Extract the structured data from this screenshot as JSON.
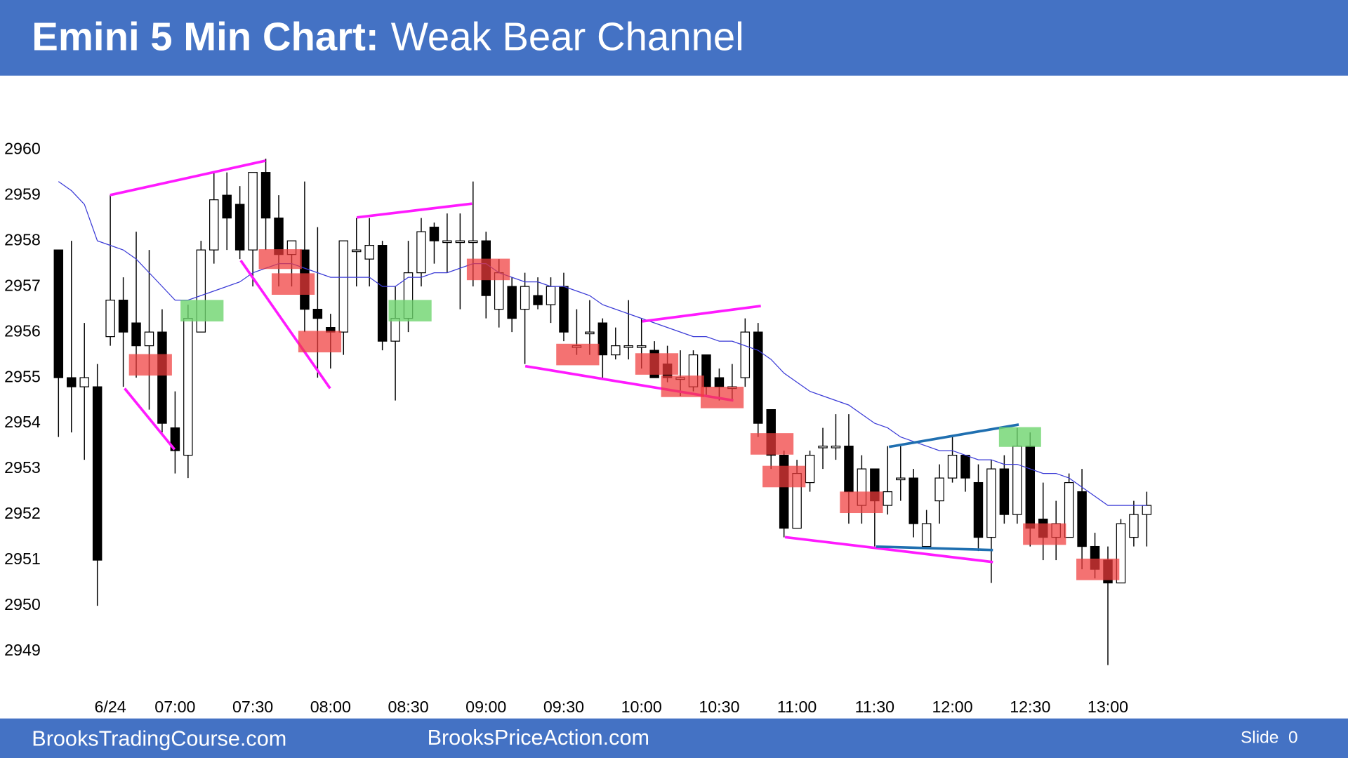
{
  "header": {
    "title_bold": "Emini 5 Min Chart:",
    "title_rest": "Weak Bear Channel"
  },
  "footer": {
    "left": "BrooksTradingCourse.com",
    "center": "BrooksPriceAction.com",
    "slide": "Slide  0"
  },
  "chart_data": {
    "type": "candlestick",
    "categories": [
      null,
      null,
      null,
      null,
      "6/24",
      null,
      null,
      null,
      null,
      "07:00",
      null,
      null,
      null,
      null,
      null,
      "07:30",
      null,
      null,
      null,
      null,
      null,
      "08:00",
      null,
      null,
      null,
      null,
      null,
      "08:30",
      null,
      null,
      null,
      null,
      null,
      "09:00",
      null,
      null,
      null,
      null,
      null,
      "09:30",
      null,
      null,
      null,
      null,
      null,
      "10:00",
      null,
      null,
      null,
      null,
      null,
      "10:30",
      null,
      null,
      null,
      null,
      null,
      "11:00",
      null,
      null,
      null,
      null,
      null,
      "11:30",
      null,
      null,
      null,
      null,
      null,
      "12:00",
      null,
      null,
      null,
      null,
      null,
      "12:30",
      null,
      null,
      null,
      null,
      null,
      "13:00",
      null,
      null,
      null
    ],
    "open": [
      2957.8,
      2955,
      2954.8,
      2954.8,
      2955.9,
      2956.7,
      2956.2,
      2955.7,
      2956,
      2953.9,
      2953.3,
      2956,
      2957.8,
      2959,
      2958.8,
      2957.8,
      2959.5,
      2958.5,
      2957.7,
      2957.8,
      2956.5,
      2956.1,
      2956,
      2957.8,
      2957.6,
      2957.9,
      2955.8,
      2956.3,
      2957.3,
      2958.3,
      2958,
      2958,
      2958,
      2958,
      2956.5,
      2957,
      2956.5,
      2956.8,
      2956.6,
      2957,
      2955.7,
      2956,
      2956.2,
      2955.5,
      2955.7,
      2955.7,
      2955.6,
      2955.3,
      2955,
      2954.8,
      2955.5,
      2955,
      2954.8,
      2955,
      2956,
      2954.3,
      2953.3,
      2951.7,
      2952.7,
      2953.5,
      2953.5,
      2953.5,
      2952.2,
      2953,
      2952.2,
      2952.8,
      2952.8,
      2951.3,
      2952.3,
      2952.8,
      2953.3,
      2952.7,
      2951.5,
      2953,
      2952,
      2953.5,
      2951.9,
      2951.5,
      2951.5,
      2952.5,
      2951.3,
      2951,
      2950.5,
      2951.5,
      2952
    ],
    "high": [
      2957.8,
      2958,
      2956.2,
      2955.3,
      2959,
      2957.2,
      2958.2,
      2957.8,
      2956.5,
      2954.7,
      2956.6,
      2958,
      2959.5,
      2959.5,
      2959.2,
      2959.5,
      2959.8,
      2959,
      2958,
      2959.3,
      2958.3,
      2956.4,
      2958,
      2958.5,
      2958.5,
      2958,
      2957,
      2958,
      2958.5,
      2958.4,
      2958.6,
      2958.6,
      2959.3,
      2958.2,
      2957.6,
      2957.2,
      2957.3,
      2957.2,
      2957.2,
      2957.3,
      2956.5,
      2956.7,
      2956.3,
      2956.1,
      2956.7,
      2956.3,
      2955.8,
      2955.7,
      2955.6,
      2955.6,
      2955.5,
      2955.2,
      2955.3,
      2956.3,
      2956.2,
      2954.3,
      2953.4,
      2953.2,
      2953.4,
      2953.9,
      2954.2,
      2954.2,
      2953.3,
      2953,
      2953.5,
      2953.5,
      2953,
      2952.1,
      2953.1,
      2953.7,
      2953.3,
      2953.1,
      2953.2,
      2953.3,
      2953.9,
      2953.8,
      2952.7,
      2952.3,
      2952.9,
      2953,
      2951.6,
      2951.3,
      2951.9,
      2952.3,
      2952.5
    ],
    "low": [
      2953.7,
      2953.8,
      2953.2,
      2950,
      2955.7,
      2954.8,
      2955,
      2954.3,
      2953.8,
      2952.9,
      2952.8,
      2956,
      2957.5,
      2957.8,
      2957.6,
      2957,
      2957.8,
      2957,
      2957,
      2956,
      2955,
      2955.2,
      2955.5,
      2957,
      2957,
      2955.6,
      2954.5,
      2956,
      2957,
      2957.5,
      2957.3,
      2956.5,
      2957,
      2956.3,
      2956.1,
      2956,
      2955.3,
      2956.5,
      2956.2,
      2955.8,
      2955.5,
      2955.5,
      2955,
      2955.4,
      2955.4,
      2955.2,
      2955,
      2954.9,
      2954.6,
      2954.7,
      2954.6,
      2954.5,
      2954.5,
      2954.8,
      2953.7,
      2953,
      2951.5,
      2951.7,
      2952.5,
      2953,
      2953.2,
      2951.8,
      2951.8,
      2951.3,
      2952,
      2952.3,
      2951.5,
      2951.3,
      2951.8,
      2952.7,
      2952.5,
      2951.2,
      2950.5,
      2951.8,
      2951.8,
      2951.3,
      2951,
      2951,
      2951.5,
      2950.8,
      2950.6,
      2948.7,
      2950.5,
      2951.3,
      2951.3
    ],
    "close": [
      2955,
      2954.8,
      2955,
      2951,
      2956.7,
      2956,
      2955.7,
      2956,
      2954,
      2953.4,
      2956.3,
      2957.8,
      2958.9,
      2958.5,
      2957.8,
      2959.5,
      2958.5,
      2957.7,
      2958,
      2956.5,
      2956.3,
      2956,
      2958,
      2957.8,
      2957.9,
      2955.8,
      2956.3,
      2957.3,
      2958.2,
      2958,
      2958,
      2958,
      2958,
      2956.8,
      2957.3,
      2956.3,
      2957,
      2956.6,
      2957,
      2956,
      2955.7,
      2956,
      2955.5,
      2955.7,
      2955.7,
      2955.7,
      2955,
      2955,
      2955,
      2955.5,
      2954.8,
      2954.8,
      2954.8,
      2956,
      2954,
      2953.3,
      2951.7,
      2952.9,
      2953.3,
      2953.5,
      2953.5,
      2952.5,
      2953,
      2952.3,
      2952.5,
      2952.8,
      2951.8,
      2951.8,
      2952.8,
      2953.3,
      2952.8,
      2951.5,
      2953,
      2952,
      2953.5,
      2951.7,
      2951.5,
      2951.8,
      2952.7,
      2951.3,
      2950.8,
      2950.5,
      2951.8,
      2952,
      2952.2
    ],
    "moving_average": {
      "color": "#3a3ad6",
      "values": [
        2959.3,
        2959.1,
        2958.8,
        2958.0,
        2957.9,
        2957.8,
        2957.6,
        2957.3,
        2957.0,
        2956.7,
        2956.7,
        2956.8,
        2956.9,
        2957.0,
        2957.1,
        2957.3,
        2957.4,
        2957.5,
        2957.5,
        2957.4,
        2957.3,
        2957.2,
        2957.2,
        2957.2,
        2957.2,
        2957.0,
        2957.0,
        2957.2,
        2957.2,
        2957.3,
        2957.3,
        2957.4,
        2957.5,
        2957.5,
        2957.3,
        2957.2,
        2957.1,
        2957.1,
        2957.0,
        2957.0,
        2956.9,
        2956.8,
        2956.6,
        2956.5,
        2956.4,
        2956.3,
        2956.2,
        2956.1,
        2956.0,
        2955.9,
        2955.9,
        2955.8,
        2955.8,
        2955.7,
        2955.6,
        2955.4,
        2955.1,
        2954.9,
        2954.7,
        2954.6,
        2954.5,
        2954.4,
        2954.2,
        2954.0,
        2953.9,
        2953.7,
        2953.6,
        2953.5,
        2953.4,
        2953.4,
        2953.3,
        2953.2,
        2953.2,
        2953.1,
        2953.1,
        2953.0,
        2952.9,
        2952.9,
        2952.8,
        2952.6,
        2952.4,
        2952.2,
        2952.2,
        2952.2,
        2952.2
      ]
    },
    "up_color": "#ffffff",
    "down_color": "#000000",
    "ylim": [
      2948,
      2961
    ],
    "yticks": [
      2949,
      2950,
      2951,
      2952,
      2953,
      2954,
      2955,
      2956,
      2957,
      2958,
      2959,
      2960
    ],
    "grid": false
  }
}
